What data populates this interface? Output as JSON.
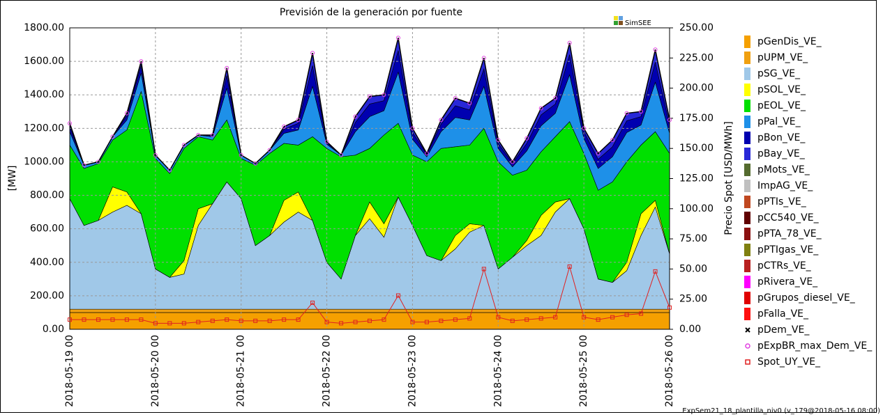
{
  "chart_data": {
    "type": "stacked_area",
    "title": "Previsión de la generación por fuente",
    "ylabel": "[MW]",
    "y2label": "Precio Spot [USD/MWh]",
    "annotations": [
      "SimSEE",
      "ExpSem21_18_plantilla_niv0 (v_179@2018-05-16 08:00)"
    ],
    "grid": true,
    "x": [
      "2018-05-19 00",
      "2018-05-19 04",
      "2018-05-19 08",
      "2018-05-19 12",
      "2018-05-19 16",
      "2018-05-19 20",
      "2018-05-20 00",
      "2018-05-20 04",
      "2018-05-20 08",
      "2018-05-20 12",
      "2018-05-20 16",
      "2018-05-20 20",
      "2018-05-21 00",
      "2018-05-21 04",
      "2018-05-21 08",
      "2018-05-21 12",
      "2018-05-21 16",
      "2018-05-21 20",
      "2018-05-22 00",
      "2018-05-22 04",
      "2018-05-22 08",
      "2018-05-22 12",
      "2018-05-22 16",
      "2018-05-22 20",
      "2018-05-23 00",
      "2018-05-23 04",
      "2018-05-23 08",
      "2018-05-23 12",
      "2018-05-23 16",
      "2018-05-23 20",
      "2018-05-24 00",
      "2018-05-24 04",
      "2018-05-24 08",
      "2018-05-24 12",
      "2018-05-24 16",
      "2018-05-24 20",
      "2018-05-25 00",
      "2018-05-25 04",
      "2018-05-25 08",
      "2018-05-25 12",
      "2018-05-25 16",
      "2018-05-25 20",
      "2018-05-26 00"
    ],
    "xticks": [
      "2018-05-19 00",
      "2018-05-20 00",
      "2018-05-21 00",
      "2018-05-22 00",
      "2018-05-23 00",
      "2018-05-24 00",
      "2018-05-25 00",
      "2018-05-26 00"
    ],
    "ylim": [
      0,
      1800
    ],
    "yticks": [
      {
        "value": 0,
        "label": "0.00"
      },
      {
        "value": 200,
        "label": "200.00"
      },
      {
        "value": 400,
        "label": "400.00"
      },
      {
        "value": 600,
        "label": "600.00"
      },
      {
        "value": 800,
        "label": "800.00"
      },
      {
        "value": 1000,
        "label": "1000.00"
      },
      {
        "value": 1200,
        "label": "1200.00"
      },
      {
        "value": 1400,
        "label": "1400.00"
      },
      {
        "value": 1600,
        "label": "1600.00"
      },
      {
        "value": 1800,
        "label": "1800.00"
      }
    ],
    "y2lim": [
      0,
      250
    ],
    "y2ticks": [
      {
        "value": 0,
        "label": "0.00"
      },
      {
        "value": 25,
        "label": "25.00"
      },
      {
        "value": 50,
        "label": "50.00"
      },
      {
        "value": 75,
        "label": "75.00"
      },
      {
        "value": 100,
        "label": "100.00"
      },
      {
        "value": 125,
        "label": "125.00"
      },
      {
        "value": 150,
        "label": "150.00"
      },
      {
        "value": 175,
        "label": "175.00"
      },
      {
        "value": 200,
        "label": "200.00"
      },
      {
        "value": 225,
        "label": "225.00"
      },
      {
        "value": 250,
        "label": "250.00"
      }
    ],
    "series": [
      {
        "name": "pGenDis_VE_",
        "color": "#f5a000",
        "values": [
          100,
          100,
          100,
          100,
          100,
          100,
          100,
          100,
          100,
          100,
          100,
          100,
          100,
          100,
          100,
          100,
          100,
          100,
          100,
          100,
          100,
          100,
          100,
          100,
          100,
          100,
          100,
          100,
          100,
          100,
          100,
          100,
          100,
          100,
          100,
          100,
          100,
          100,
          100,
          100,
          100,
          100,
          100
        ]
      },
      {
        "name": "pUPM_VE_",
        "color": "#f0a010",
        "values": [
          20,
          20,
          20,
          20,
          20,
          20,
          20,
          20,
          20,
          20,
          20,
          20,
          20,
          20,
          20,
          20,
          20,
          20,
          20,
          20,
          20,
          20,
          20,
          20,
          20,
          20,
          20,
          20,
          20,
          20,
          20,
          20,
          20,
          20,
          20,
          20,
          20,
          20,
          20,
          20,
          20,
          20,
          20
        ]
      },
      {
        "name": "pSG_VE_",
        "color": "#a0c8e8",
        "values": [
          660,
          500,
          530,
          580,
          620,
          570,
          240,
          190,
          210,
          500,
          630,
          760,
          660,
          380,
          440,
          520,
          580,
          530,
          280,
          180,
          440,
          540,
          430,
          670,
          500,
          320,
          290,
          360,
          460,
          500,
          240,
          310,
          380,
          440,
          580,
          660,
          480,
          180,
          160,
          230,
          440,
          610,
          330
        ]
      },
      {
        "name": "pSOL_VE_",
        "color": "#ffff00",
        "values": [
          0,
          0,
          0,
          150,
          80,
          0,
          0,
          0,
          80,
          100,
          0,
          0,
          0,
          0,
          0,
          130,
          120,
          0,
          0,
          0,
          0,
          100,
          80,
          0,
          0,
          0,
          0,
          80,
          50,
          0,
          0,
          0,
          30,
          120,
          60,
          0,
          0,
          0,
          0,
          50,
          130,
          40,
          0
        ]
      },
      {
        "name": "pEOL_VE_",
        "color": "#00e000",
        "values": [
          320,
          340,
          340,
          280,
          370,
          730,
          660,
          620,
          670,
          430,
          380,
          370,
          240,
          480,
          490,
          340,
          280,
          500,
          680,
          730,
          480,
          320,
          530,
          440,
          420,
          560,
          670,
          530,
          470,
          580,
          640,
          490,
          420,
          380,
          390,
          460,
          450,
          530,
          600,
          600,
          410,
          410,
          600
        ]
      },
      {
        "name": "pPal_VE_",
        "color": "#1e90e8",
        "values": [
          80,
          20,
          10,
          20,
          60,
          110,
          20,
          20,
          20,
          10,
          20,
          190,
          20,
          10,
          20,
          60,
          90,
          300,
          25,
          10,
          140,
          190,
          145,
          305,
          95,
          30,
          100,
          175,
          150,
          250,
          80,
          50,
          115,
          155,
          140,
          280,
          90,
          130,
          150,
          175,
          120,
          295,
          120
        ]
      },
      {
        "name": "pBon_VE_",
        "color": "#0000b0",
        "values": [
          30,
          0,
          0,
          0,
          25,
          45,
          0,
          0,
          0,
          0,
          10,
          75,
          0,
          0,
          0,
          25,
          40,
          125,
          10,
          0,
          55,
          75,
          60,
          130,
          40,
          15,
          45,
          70,
          60,
          105,
          30,
          20,
          45,
          65,
          55,
          120,
          40,
          55,
          60,
          70,
          50,
          120,
          50
        ]
      },
      {
        "name": "pBay_VE_",
        "color": "#2828d8",
        "values": [
          20,
          0,
          0,
          0,
          15,
          25,
          0,
          0,
          0,
          0,
          0,
          45,
          0,
          0,
          0,
          15,
          20,
          75,
          5,
          0,
          35,
          45,
          35,
          75,
          25,
          5,
          25,
          45,
          40,
          65,
          20,
          10,
          30,
          40,
          35,
          70,
          20,
          35,
          40,
          45,
          30,
          75,
          30
        ]
      },
      {
        "name": "pMots_VE_",
        "color": "#556b2f",
        "values": [
          0,
          0,
          0,
          0,
          0,
          0,
          0,
          0,
          0,
          0,
          0,
          0,
          0,
          0,
          0,
          0,
          0,
          0,
          0,
          0,
          0,
          0,
          0,
          0,
          0,
          0,
          0,
          0,
          0,
          0,
          0,
          0,
          0,
          0,
          0,
          0,
          0,
          0,
          0,
          0,
          0,
          0,
          0
        ]
      },
      {
        "name": "ImpAG_VE_",
        "color": "#c0c0c0",
        "values": [
          0,
          0,
          0,
          0,
          0,
          0,
          0,
          0,
          0,
          0,
          0,
          0,
          0,
          0,
          0,
          0,
          0,
          0,
          0,
          0,
          0,
          0,
          0,
          0,
          0,
          0,
          0,
          0,
          0,
          0,
          0,
          0,
          0,
          0,
          0,
          0,
          0,
          0,
          0,
          0,
          0,
          0,
          0
        ]
      },
      {
        "name": "pPTIs_VE_",
        "color": "#c04820",
        "values": [
          0,
          0,
          0,
          0,
          0,
          0,
          0,
          0,
          0,
          0,
          0,
          0,
          0,
          0,
          0,
          0,
          0,
          0,
          0,
          0,
          0,
          0,
          0,
          0,
          0,
          0,
          0,
          0,
          0,
          0,
          0,
          0,
          0,
          0,
          0,
          0,
          0,
          0,
          0,
          0,
          0,
          0,
          0
        ]
      },
      {
        "name": "pCC540_VE_",
        "color": "#600000",
        "values": [
          0,
          0,
          0,
          0,
          0,
          0,
          0,
          0,
          0,
          0,
          0,
          0,
          0,
          0,
          0,
          0,
          0,
          0,
          0,
          0,
          0,
          0,
          0,
          0,
          0,
          0,
          0,
          0,
          0,
          0,
          0,
          0,
          0,
          0,
          0,
          0,
          0,
          0,
          0,
          0,
          0,
          0,
          0
        ]
      },
      {
        "name": "pPTA_78_VE_",
        "color": "#8b1010",
        "values": [
          0,
          0,
          0,
          0,
          0,
          0,
          0,
          0,
          0,
          0,
          0,
          0,
          0,
          0,
          0,
          0,
          0,
          0,
          0,
          0,
          0,
          0,
          0,
          0,
          0,
          0,
          0,
          0,
          0,
          0,
          0,
          0,
          0,
          0,
          0,
          0,
          0,
          0,
          0,
          0,
          0,
          0,
          0
        ]
      },
      {
        "name": "pPTIgas_VE_",
        "color": "#808010",
        "values": [
          0,
          0,
          0,
          0,
          0,
          0,
          0,
          0,
          0,
          0,
          0,
          0,
          0,
          0,
          0,
          0,
          0,
          0,
          0,
          0,
          0,
          0,
          0,
          0,
          0,
          0,
          0,
          0,
          0,
          0,
          0,
          0,
          0,
          0,
          0,
          0,
          0,
          0,
          0,
          0,
          0,
          0,
          0
        ]
      },
      {
        "name": "pCTRs_VE_",
        "color": "#b82020",
        "values": [
          0,
          0,
          0,
          0,
          0,
          0,
          0,
          0,
          0,
          0,
          0,
          0,
          0,
          0,
          0,
          0,
          0,
          0,
          0,
          0,
          0,
          0,
          0,
          0,
          0,
          0,
          0,
          0,
          0,
          0,
          0,
          0,
          0,
          0,
          0,
          0,
          0,
          0,
          0,
          0,
          0,
          0,
          0
        ]
      },
      {
        "name": "pRivera_VE_",
        "color": "#ff00ff",
        "values": [
          0,
          0,
          0,
          0,
          0,
          0,
          0,
          0,
          0,
          0,
          0,
          0,
          0,
          0,
          0,
          0,
          0,
          0,
          0,
          0,
          0,
          0,
          0,
          0,
          0,
          0,
          0,
          0,
          0,
          0,
          0,
          0,
          0,
          0,
          0,
          0,
          0,
          0,
          0,
          0,
          0,
          0,
          0
        ]
      },
      {
        "name": "pGrupos_diesel_VE_",
        "color": "#e00000",
        "values": [
          0,
          0,
          0,
          0,
          0,
          0,
          0,
          0,
          0,
          0,
          0,
          0,
          0,
          0,
          0,
          0,
          0,
          0,
          0,
          0,
          0,
          0,
          0,
          0,
          0,
          0,
          0,
          0,
          0,
          0,
          0,
          0,
          0,
          0,
          0,
          0,
          0,
          0,
          0,
          0,
          0,
          0,
          0
        ]
      },
      {
        "name": "pFalla_VE_",
        "color": "#ff1010",
        "values": [
          0,
          0,
          0,
          0,
          0,
          0,
          0,
          0,
          0,
          0,
          0,
          0,
          0,
          0,
          0,
          0,
          0,
          0,
          0,
          0,
          0,
          0,
          0,
          0,
          0,
          0,
          0,
          0,
          0,
          0,
          0,
          0,
          0,
          0,
          0,
          0,
          0,
          0,
          0,
          0,
          0,
          0,
          0
        ]
      },
      {
        "name": "pDem_VE_",
        "color": "#000000",
        "marker": "x",
        "line": true,
        "values": [
          1230,
          980,
          1000,
          1150,
          1290,
          1600,
          1040,
          950,
          1100,
          1160,
          1160,
          1560,
          1040,
          990,
          1070,
          1210,
          1250,
          1650,
          1120,
          1040,
          1270,
          1390,
          1400,
          1740,
          1200,
          1050,
          1250,
          1380,
          1350,
          1620,
          1130,
          1000,
          1140,
          1320,
          1380,
          1710,
          1200,
          1050,
          1130,
          1290,
          1300,
          1670,
          1250
        ]
      },
      {
        "name": "pExpBR_max_Dem_VE_",
        "color": "#e040e0",
        "marker": "o",
        "values": [
          1230,
          980,
          1000,
          1150,
          1290,
          1600,
          1040,
          950,
          1100,
          1160,
          1160,
          1560,
          1040,
          990,
          1070,
          1210,
          1250,
          1650,
          1120,
          1040,
          1270,
          1390,
          1400,
          1740,
          1200,
          1050,
          1250,
          1380,
          1350,
          1620,
          1130,
          1000,
          1140,
          1320,
          1380,
          1710,
          1200,
          1050,
          1130,
          1290,
          1300,
          1670,
          1250
        ]
      },
      {
        "name": "Spot_UY_VE_",
        "color": "#e02020",
        "marker": "s",
        "line": true,
        "axis": "y2",
        "values": [
          8,
          8,
          8,
          8,
          8,
          8,
          5,
          5,
          5,
          6,
          7,
          8,
          7,
          7,
          7,
          8,
          8,
          22,
          6,
          5,
          6,
          7,
          8,
          28,
          6,
          6,
          7,
          8,
          9,
          50,
          10,
          7,
          8,
          9,
          10,
          52,
          10,
          8,
          10,
          12,
          13,
          48,
          18
        ]
      }
    ]
  }
}
